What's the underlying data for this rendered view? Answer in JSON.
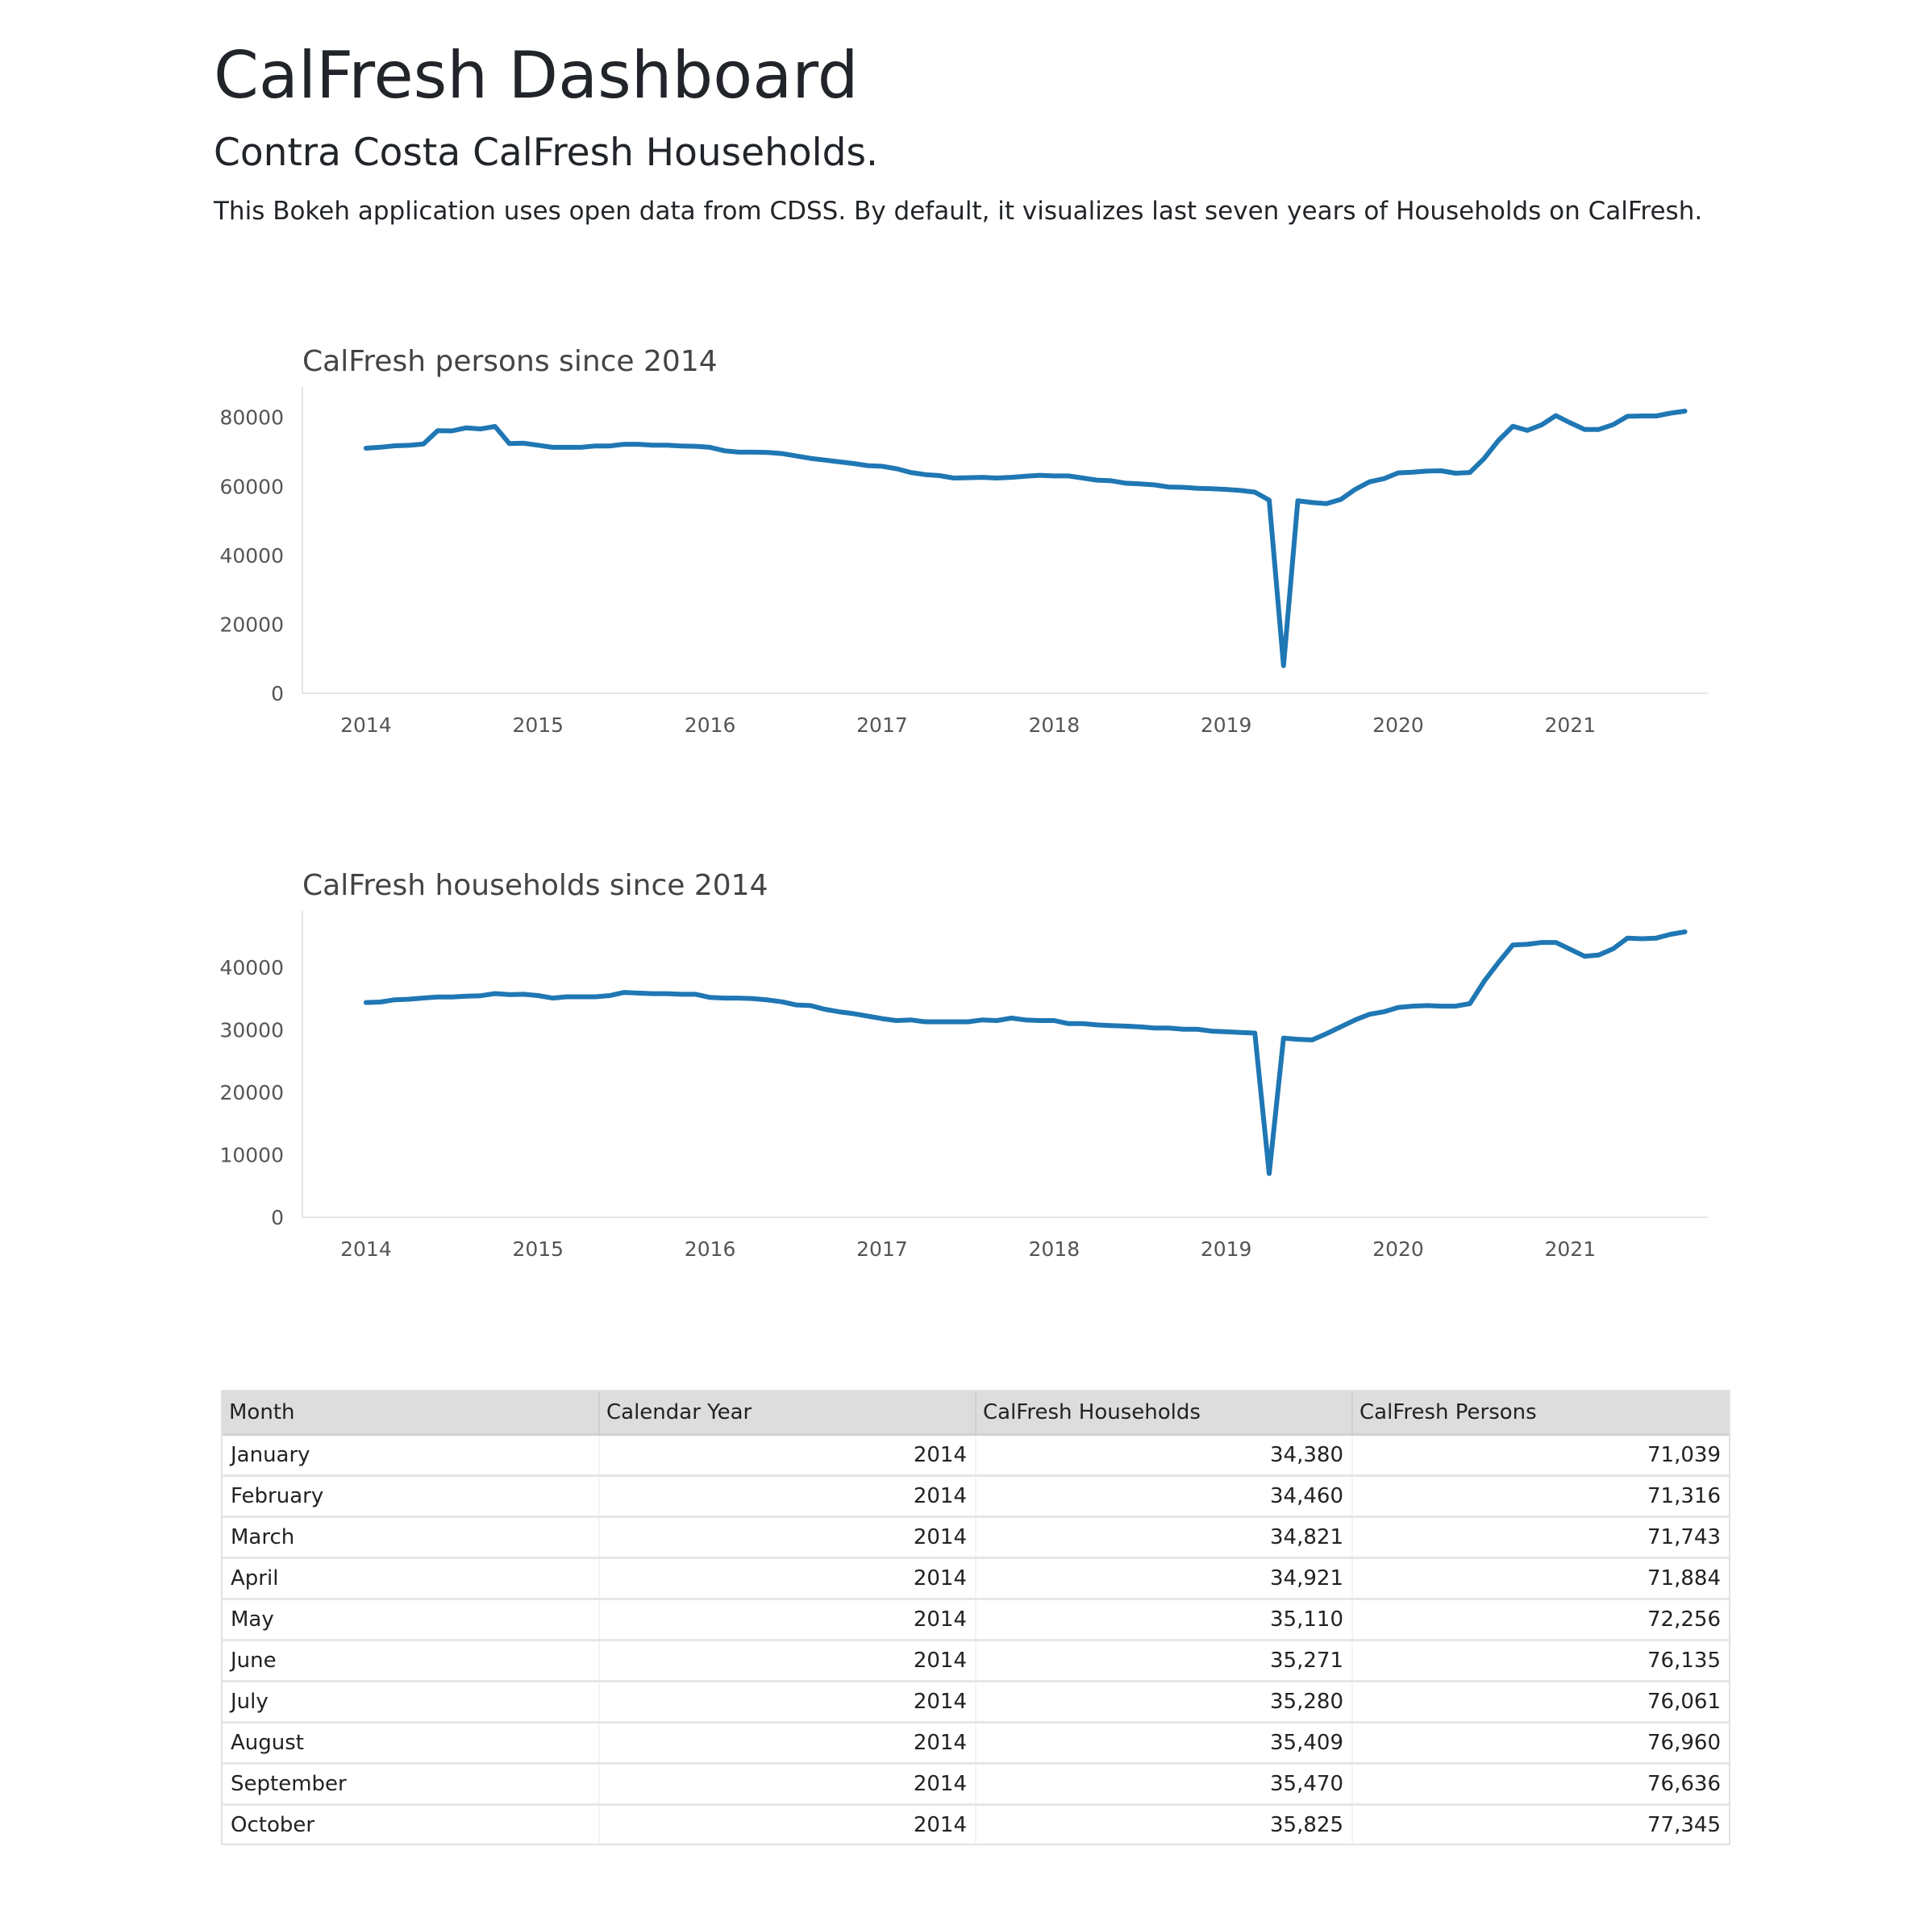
{
  "page": {
    "title": "CalFresh Dashboard",
    "subtitle": "Contra Costa CalFresh Households.",
    "description": "This Bokeh application uses open data from CDSS. By default, it visualizes last seven years of Households on CalFresh."
  },
  "colors": {
    "line": "#1f77b4"
  },
  "chart_data": [
    {
      "type": "line",
      "title": "CalFresh persons since 2014",
      "xlabel": "",
      "ylabel": "",
      "x_start": "2014-01",
      "x_interval": "month",
      "xlim": [
        2013.63,
        2021.8
      ],
      "ylim": [
        0,
        86000
      ],
      "xticks": [
        "2014",
        "2015",
        "2016",
        "2017",
        "2018",
        "2019",
        "2020",
        "2021"
      ],
      "yticks": [
        "0",
        "20000",
        "40000",
        "60000",
        "80000"
      ],
      "grid": false,
      "series": [
        {
          "values": [
            71039,
            71316,
            71743,
            71884,
            72256,
            76135,
            76061,
            76960,
            76636,
            77345,
            72400,
            72500,
            71900,
            71300,
            71300,
            71300,
            71700,
            71700,
            72200,
            72200,
            71900,
            71900,
            71700,
            71600,
            71300,
            70300,
            69900,
            69900,
            69800,
            69500,
            68800,
            68100,
            67600,
            67100,
            66600,
            66000,
            65800,
            65100,
            64000,
            63400,
            63100,
            62400,
            62500,
            62600,
            62400,
            62600,
            62900,
            63200,
            63000,
            63000,
            62400,
            61800,
            61600,
            60900,
            60700,
            60400,
            59800,
            59700,
            59400,
            59300,
            59100,
            58800,
            58300,
            56000,
            8000,
            55800,
            55300,
            55000,
            56200,
            59100,
            61300,
            62200,
            63900,
            64100,
            64400,
            64500,
            63800,
            64000,
            68100,
            73300,
            77400,
            76200,
            77800,
            80500,
            78400,
            76500,
            76500,
            77900,
            80300,
            80400,
            80400,
            81200,
            81800
          ]
        }
      ]
    },
    {
      "type": "line",
      "title": "CalFresh households since 2014",
      "xlabel": "",
      "ylabel": "",
      "x_start": "2014-01",
      "x_interval": "month",
      "xlim": [
        2013.63,
        2021.8
      ],
      "ylim": [
        0,
        47500
      ],
      "xticks": [
        "2014",
        "2015",
        "2016",
        "2017",
        "2018",
        "2019",
        "2020",
        "2021"
      ],
      "yticks": [
        "0",
        "10000",
        "20000",
        "30000",
        "40000"
      ],
      "grid": false,
      "series": [
        {
          "values": [
            34380,
            34460,
            34821,
            34921,
            35110,
            35271,
            35280,
            35409,
            35470,
            35825,
            35650,
            35700,
            35500,
            35100,
            35300,
            35300,
            35300,
            35500,
            36000,
            35900,
            35800,
            35800,
            35700,
            35700,
            35200,
            35100,
            35100,
            35000,
            34800,
            34500,
            34000,
            33900,
            33300,
            32900,
            32600,
            32200,
            31800,
            31500,
            31600,
            31300,
            31300,
            31300,
            31300,
            31600,
            31500,
            31900,
            31600,
            31500,
            31500,
            31000,
            31000,
            30800,
            30700,
            30600,
            30500,
            30300,
            30300,
            30100,
            30100,
            29800,
            29700,
            29600,
            29500,
            7000,
            28700,
            28500,
            28400,
            29400,
            30500,
            31600,
            32500,
            32900,
            33600,
            33800,
            33900,
            33800,
            33800,
            34200,
            37800,
            40800,
            43600,
            43700,
            44000,
            44000,
            42900,
            41800,
            42000,
            43000,
            44700,
            44600,
            44700,
            45300,
            45700
          ]
        }
      ]
    }
  ],
  "table": {
    "headers": [
      "Month",
      "Calendar Year",
      "CalFresh Households",
      "CalFresh Persons"
    ],
    "rows": [
      [
        "January",
        "2014",
        "34,380",
        "71,039"
      ],
      [
        "February",
        "2014",
        "34,460",
        "71,316"
      ],
      [
        "March",
        "2014",
        "34,821",
        "71,743"
      ],
      [
        "April",
        "2014",
        "34,921",
        "71,884"
      ],
      [
        "May",
        "2014",
        "35,110",
        "72,256"
      ],
      [
        "June",
        "2014",
        "35,271",
        "76,135"
      ],
      [
        "July",
        "2014",
        "35,280",
        "76,061"
      ],
      [
        "August",
        "2014",
        "35,409",
        "76,960"
      ],
      [
        "September",
        "2014",
        "35,470",
        "76,636"
      ],
      [
        "October",
        "2014",
        "35,825",
        "77,345"
      ]
    ]
  }
}
